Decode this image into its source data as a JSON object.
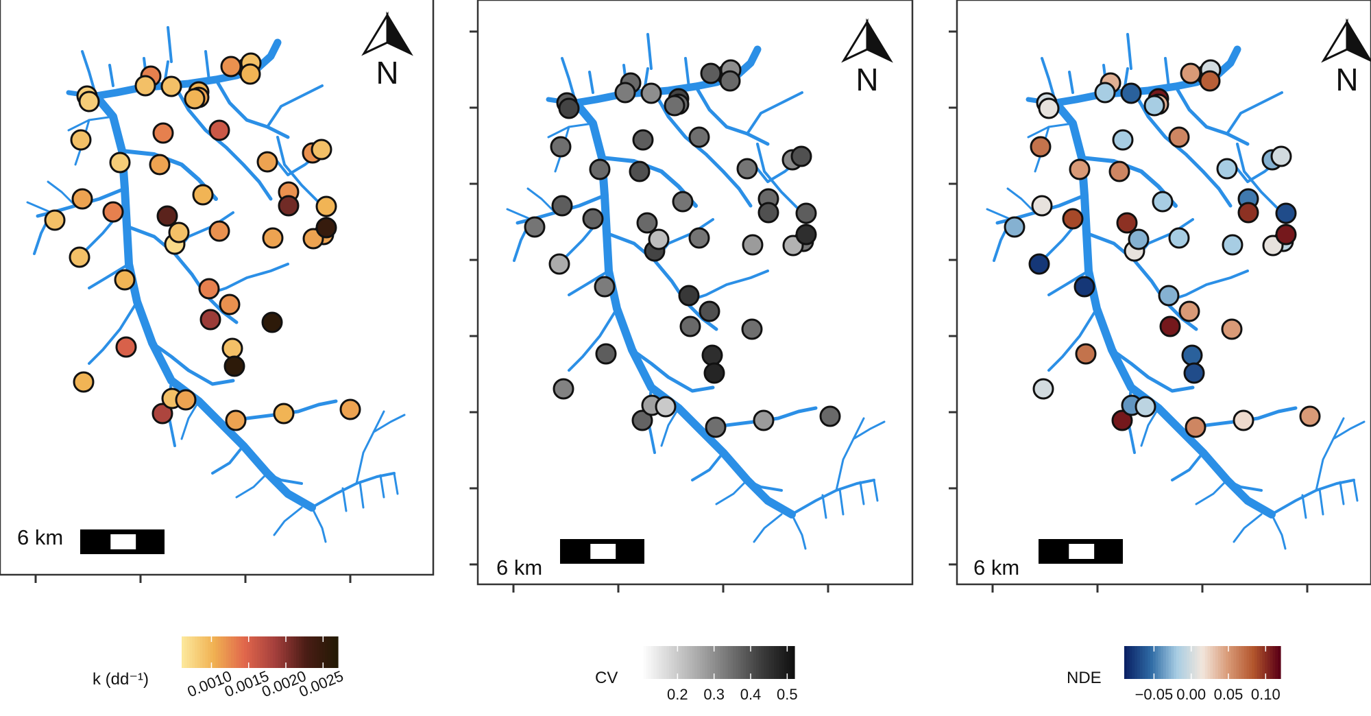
{
  "panels": [
    {
      "id": "k",
      "north_label": "N",
      "scale_label": "6 km",
      "legend": {
        "title": "k (dd⁻¹)",
        "ticks": [
          "0.0010",
          "0.0015",
          "0.0020",
          "0.0025"
        ],
        "range": [
          0.0006,
          0.0027
        ],
        "colors": [
          "#fce79a",
          "#f0b152",
          "#e1674c",
          "#a43f3c",
          "#4a1c15",
          "#241a05"
        ]
      },
      "sites": [
        {
          "id": 1,
          "value": 0.0008
        },
        {
          "id": 2,
          "value": 0.0008
        },
        {
          "id": 3,
          "value": 0.0009
        },
        {
          "id": 4,
          "value": 0.0008
        },
        {
          "id": 5,
          "value": 0.0011
        },
        {
          "id": 6,
          "value": 0.0009
        },
        {
          "id": 7,
          "value": 0.0009
        },
        {
          "id": 8,
          "value": 0.001
        },
        {
          "id": 9,
          "value": 0.001
        },
        {
          "id": 10,
          "value": 0.0015
        },
        {
          "id": 11,
          "value": 0.0013
        },
        {
          "id": 12,
          "value": 0.0013
        },
        {
          "id": 13,
          "value": 0.0009
        },
        {
          "id": 14,
          "value": 0.0009
        },
        {
          "id": 15,
          "value": 0.001
        },
        {
          "id": 16,
          "value": 0.0013
        },
        {
          "id": 17,
          "value": 0.0011
        },
        {
          "id": 18,
          "value": 0.0022
        },
        {
          "id": 19,
          "value": 0.0016
        },
        {
          "id": 20,
          "value": 0.0011
        },
        {
          "id": 21,
          "value": 0.001
        },
        {
          "id": 22,
          "value": 0.0007
        },
        {
          "id": 23,
          "value": 0.001
        },
        {
          "id": 24,
          "value": 0.0012
        },
        {
          "id": 25,
          "value": 0.0009
        },
        {
          "id": 26,
          "value": 0.0026
        },
        {
          "id": 27,
          "value": 0.0018
        },
        {
          "id": 28,
          "value": 0.0009
        },
        {
          "id": 29,
          "value": 0.0011
        },
        {
          "id": 30,
          "value": 0.0011
        },
        {
          "id": 31,
          "value": 0.0013
        },
        {
          "id": 32,
          "value": 0.0019
        },
        {
          "id": 33,
          "value": 0.0012
        },
        {
          "id": 34,
          "value": 0.0009
        },
        {
          "id": 35,
          "value": 0.0026
        },
        {
          "id": 36,
          "value": 0.0011
        },
        {
          "id": 37,
          "value": 0.0012
        },
        {
          "id": 38,
          "value": 0.0011
        },
        {
          "id": 39,
          "value": 0.0012
        },
        {
          "id": 40,
          "value": 0.001
        },
        {
          "id": 41,
          "value": 0.0011
        },
        {
          "id": 42,
          "value": 0.0021
        },
        {
          "id": 43,
          "value": 0.001
        },
        {
          "id": 44,
          "value": 0.0011
        },
        {
          "id": 45,
          "value": 0.0013
        },
        {
          "id": 46,
          "value": 0.0009
        },
        {
          "id": 47,
          "value": 0.0009
        },
        {
          "id": 48,
          "value": 0.0011
        },
        {
          "id": 49,
          "value": 0.0025
        },
        {
          "id": 50,
          "value": 0.0012
        },
        {
          "id": 51,
          "value": 0.001
        }
      ]
    },
    {
      "id": "cv",
      "north_label": "N",
      "scale_label": "6 km",
      "legend": {
        "title": "CV",
        "ticks": [
          "0.2",
          "0.3",
          "0.4",
          "0.5"
        ],
        "range": [
          0.1,
          0.52
        ],
        "colors": [
          "#ffffff",
          "#d2d2d2",
          "#a2a2a2",
          "#6e6e6e",
          "#3a3a3a",
          "#111111"
        ]
      },
      "sites": [
        {
          "id": 1,
          "value": 0.38
        },
        {
          "id": 2,
          "value": 0.42
        },
        {
          "id": 3,
          "value": 0.35
        },
        {
          "id": 4,
          "value": 0.36
        },
        {
          "id": 5,
          "value": 0.38
        },
        {
          "id": 6,
          "value": 0.34
        },
        {
          "id": 7,
          "value": 0.25
        },
        {
          "id": 8,
          "value": 0.33
        },
        {
          "id": 9,
          "value": 0.32
        },
        {
          "id": 10,
          "value": 0.38
        },
        {
          "id": 11,
          "value": 0.37
        },
        {
          "id": 12,
          "value": 0.36
        },
        {
          "id": 13,
          "value": 0.33
        },
        {
          "id": 14,
          "value": 0.3
        },
        {
          "id": 15,
          "value": 0.42
        },
        {
          "id": 16,
          "value": 0.38
        },
        {
          "id": 17,
          "value": 0.4
        },
        {
          "id": 18,
          "value": 0.36
        },
        {
          "id": 19,
          "value": 0.35
        },
        {
          "id": 20,
          "value": 0.36
        },
        {
          "id": 21,
          "value": 0.35
        },
        {
          "id": 22,
          "value": 0.42
        },
        {
          "id": 23,
          "value": 0.34
        },
        {
          "id": 24,
          "value": 0.34
        },
        {
          "id": 25,
          "value": 0.22
        },
        {
          "id": 26,
          "value": 0.35
        },
        {
          "id": 27,
          "value": 0.37
        },
        {
          "id": 28,
          "value": 0.27
        },
        {
          "id": 29,
          "value": 0.2
        },
        {
          "id": 30,
          "value": 0.35
        },
        {
          "id": 31,
          "value": 0.44
        },
        {
          "id": 32,
          "value": 0.36
        },
        {
          "id": 33,
          "value": 0.4
        },
        {
          "id": 34,
          "value": 0.46
        },
        {
          "id": 35,
          "value": 0.48
        },
        {
          "id": 36,
          "value": 0.34
        },
        {
          "id": 37,
          "value": 0.31
        },
        {
          "id": 38,
          "value": 0.28
        },
        {
          "id": 39,
          "value": 0.36
        },
        {
          "id": 40,
          "value": 0.38
        },
        {
          "id": 41,
          "value": 0.34
        },
        {
          "id": 42,
          "value": 0.4
        },
        {
          "id": 43,
          "value": 0.28
        },
        {
          "id": 44,
          "value": 0.36
        },
        {
          "id": 45,
          "value": 0.3
        },
        {
          "id": 46,
          "value": 0.3
        },
        {
          "id": 47,
          "value": 0.4
        },
        {
          "id": 48,
          "value": 0.24
        },
        {
          "id": 49,
          "value": 0.46
        },
        {
          "id": 50,
          "value": 0.38
        },
        {
          "id": 51,
          "value": 0.36
        }
      ]
    },
    {
      "id": "nde",
      "north_label": "N",
      "scale_label": "6 km",
      "legend": {
        "title": "NDE",
        "ticks": [
          "−0.05",
          "0.00",
          "0.05",
          "0.10"
        ],
        "tick_values": [
          -0.05,
          0.0,
          0.05,
          0.1
        ],
        "range": [
          -0.09,
          0.12
        ],
        "colors": [
          "#0b2265",
          "#2f6ba5",
          "#a7cde3",
          "#f2e6dc",
          "#d99a77",
          "#b2552c",
          "#5c0016"
        ]
      },
      "sites": [
        {
          "id": 1,
          "value": 0.0
        },
        {
          "id": 2,
          "value": 0.01
        },
        {
          "id": 3,
          "value": 0.07
        },
        {
          "id": 4,
          "value": 0.05
        },
        {
          "id": 5,
          "value": 0.01
        },
        {
          "id": 6,
          "value": -0.03
        },
        {
          "id": 7,
          "value": -0.08
        },
        {
          "id": 8,
          "value": -0.08
        },
        {
          "id": 9,
          "value": 0.0
        },
        {
          "id": 10,
          "value": 0.07
        },
        {
          "id": 11,
          "value": 0.09
        },
        {
          "id": 12,
          "value": 0.04
        },
        {
          "id": 13,
          "value": -0.02
        },
        {
          "id": 14,
          "value": -0.06
        },
        {
          "id": 15,
          "value": 0.11
        },
        {
          "id": 16,
          "value": -0.02
        },
        {
          "id": 17,
          "value": 0.06
        },
        {
          "id": 18,
          "value": 0.1
        },
        {
          "id": 19,
          "value": 0.06
        },
        {
          "id": 20,
          "value": 0.04
        },
        {
          "id": 21,
          "value": -0.02
        },
        {
          "id": 22,
          "value": 0.01
        },
        {
          "id": 23,
          "value": -0.02
        },
        {
          "id": 24,
          "value": -0.02
        },
        {
          "id": 25,
          "value": -0.03
        },
        {
          "id": 26,
          "value": 0.05
        },
        {
          "id": 27,
          "value": 0.11
        },
        {
          "id": 28,
          "value": -0.04
        },
        {
          "id": 29,
          "value": -0.01
        },
        {
          "id": 30,
          "value": 0.06
        },
        {
          "id": 31,
          "value": -0.03
        },
        {
          "id": 32,
          "value": 0.11
        },
        {
          "id": 33,
          "value": 0.05
        },
        {
          "id": 34,
          "value": -0.06
        },
        {
          "id": 35,
          "value": -0.07
        },
        {
          "id": 36,
          "value": -0.02
        },
        {
          "id": 37,
          "value": -0.03
        },
        {
          "id": 38,
          "value": -0.02
        },
        {
          "id": 39,
          "value": -0.05
        },
        {
          "id": 40,
          "value": -0.07
        },
        {
          "id": 41,
          "value": -0.01
        },
        {
          "id": 42,
          "value": 0.1
        },
        {
          "id": 43,
          "value": 0.02
        },
        {
          "id": 44,
          "value": 0.05
        },
        {
          "id": 45,
          "value": -0.04
        },
        {
          "id": 46,
          "value": 0.0
        },
        {
          "id": 47,
          "value": 0.0
        },
        {
          "id": 48,
          "value": 0.01
        },
        {
          "id": 49,
          "value": 0.11
        },
        {
          "id": 50,
          "value": 0.05
        },
        {
          "id": 51,
          "value": 0.08
        }
      ]
    }
  ]
}
